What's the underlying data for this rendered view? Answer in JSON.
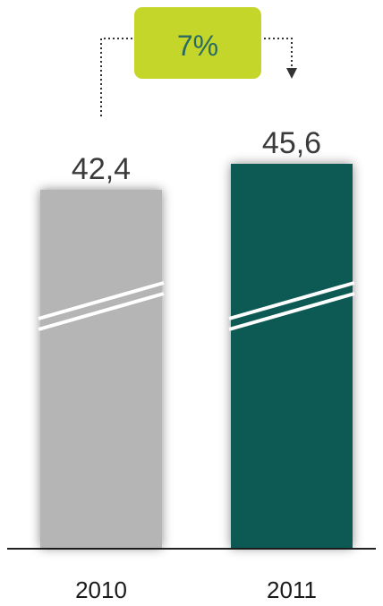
{
  "chart_data": {
    "type": "bar",
    "categories": [
      "2010",
      "2011"
    ],
    "values": [
      42.4,
      45.6
    ],
    "value_labels": [
      "42,4",
      "45,6"
    ],
    "title": "",
    "xlabel": "",
    "ylabel": "",
    "axis_break": true,
    "grid": false,
    "legend": "none",
    "bar_colors": [
      "#b5b5b5",
      "#0d5a55"
    ],
    "change_label": "7%",
    "change_badge_color": "#c5d62b",
    "change_text_color": "#2a6a62"
  }
}
